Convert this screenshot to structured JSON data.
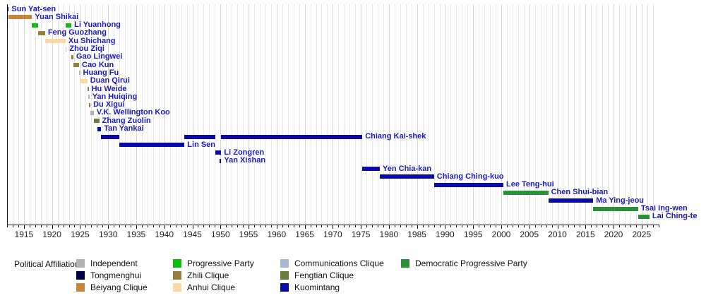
{
  "chart_data": {
    "type": "timeline-bar",
    "x_axis": {
      "domain": [
        1912,
        2028
      ],
      "tick_years": [
        1915,
        1920,
        1925,
        1930,
        1935,
        1940,
        1945,
        1950,
        1955,
        1960,
        1965,
        1970,
        1975,
        1980,
        1985,
        1990,
        1995,
        2000,
        2005,
        2010,
        2015,
        2020,
        2025
      ],
      "minor_tick_interval": 1,
      "grid": "on"
    },
    "leaders": [
      {
        "name": "Sun Yat-sen",
        "party": "Tongmenghui",
        "terms": [
          [
            1912.0,
            1912.3
          ]
        ]
      },
      {
        "name": "Yuan Shikai",
        "party": "Beiyang Clique",
        "terms": [
          [
            1912.2,
            1916.45
          ]
        ]
      },
      {
        "name": "Li Yuanhong",
        "party": "Progressive Party",
        "terms": [
          [
            1916.45,
            1917.55
          ],
          [
            1922.45,
            1923.45
          ]
        ]
      },
      {
        "name": "Feng Guozhang",
        "party": "Zhili Clique",
        "terms": [
          [
            1917.55,
            1918.78
          ]
        ]
      },
      {
        "name": "Xu Shichang",
        "party": "Anhui Clique",
        "terms": [
          [
            1918.78,
            1922.42
          ]
        ]
      },
      {
        "name": "Zhou Ziqi",
        "party": "Communications Clique",
        "terms": [
          [
            1922.42,
            1922.55
          ]
        ]
      },
      {
        "name": "Gao Lingwei",
        "party": "Zhili Clique",
        "terms": [
          [
            1923.45,
            1923.8
          ]
        ]
      },
      {
        "name": "Cao Kun",
        "party": "Zhili Clique",
        "terms": [
          [
            1923.8,
            1924.83
          ]
        ]
      },
      {
        "name": "Huang Fu",
        "party": "Independent",
        "terms": [
          [
            1924.83,
            1924.92
          ]
        ]
      },
      {
        "name": "Duan Qirui",
        "party": "Anhui Clique",
        "terms": [
          [
            1924.9,
            1926.3
          ]
        ]
      },
      {
        "name": "Hu Weide",
        "party": "Zhili Clique",
        "terms": [
          [
            1926.35,
            1926.48
          ]
        ]
      },
      {
        "name": "Yan Huiqing",
        "party": "Independent",
        "terms": [
          [
            1926.48,
            1926.58
          ]
        ]
      },
      {
        "name": "Du Xigui",
        "party": "Zhili Clique",
        "terms": [
          [
            1926.58,
            1926.85
          ]
        ]
      },
      {
        "name": "V.K. Wellington Koo",
        "party": "Independent",
        "terms": [
          [
            1926.85,
            1927.45
          ]
        ]
      },
      {
        "name": "Zhang Zuolin",
        "party": "Fengtian Clique",
        "terms": [
          [
            1927.45,
            1928.42
          ]
        ]
      },
      {
        "name": "Tan Yankai",
        "party": "Kuomintang",
        "terms": [
          [
            1928.1,
            1928.75
          ]
        ]
      },
      {
        "name": "Chiang Kai-shek",
        "party": "Kuomintang",
        "terms": [
          [
            1928.75,
            1931.95
          ],
          [
            1943.6,
            1949.05
          ],
          [
            1950.15,
            1975.27
          ]
        ]
      },
      {
        "name": "Lin Sen",
        "party": "Kuomintang",
        "terms": [
          [
            1931.95,
            1943.6
          ]
        ]
      },
      {
        "name": "Li Zongren",
        "party": "Kuomintang",
        "terms": [
          [
            1949.05,
            1950.15
          ]
        ]
      },
      {
        "name": "Yan Xishan",
        "party": "Kuomintang",
        "terms": [
          [
            1949.85,
            1950.15
          ]
        ]
      },
      {
        "name": "Yen Chia-kan",
        "party": "Kuomintang",
        "terms": [
          [
            1975.27,
            1978.38
          ]
        ]
      },
      {
        "name": "Chiang Ching-kuo",
        "party": "Kuomintang",
        "terms": [
          [
            1978.38,
            1988.04
          ]
        ]
      },
      {
        "name": "Lee Teng-hui",
        "party": "Kuomintang",
        "terms": [
          [
            1988.04,
            2000.38
          ]
        ]
      },
      {
        "name": "Chen Shui-bian",
        "party": "Democratic Progressive Party",
        "terms": [
          [
            2000.38,
            2008.38
          ]
        ]
      },
      {
        "name": "Ma Ying-jeou",
        "party": "Kuomintang",
        "terms": [
          [
            2008.38,
            2016.38
          ]
        ]
      },
      {
        "name": "Tsai Ing-wen",
        "party": "Democratic Progressive Party",
        "terms": [
          [
            2016.38,
            2024.38
          ]
        ]
      },
      {
        "name": "Lai Ching-te",
        "party": "Democratic Progressive Party",
        "terms": [
          [
            2024.38,
            2026.4
          ]
        ]
      }
    ],
    "party_colors": {
      "Independent": "#b3b3b3",
      "Tongmenghui": "#000045",
      "Beiyang Clique": "#c8863b",
      "Progressive Party": "#0cbe0c",
      "Zhili Clique": "#96803b",
      "Anhui Clique": "#fad7a3",
      "Communications Clique": "#a6b7d4",
      "Fengtian Clique": "#697c3d",
      "Kuomintang": "#0a0aaa",
      "Democratic Progressive Party": "#2a9138"
    }
  },
  "legend": {
    "title": "Political Affiliation:",
    "columns": [
      [
        "Independent",
        "Tongmenghui",
        "Beiyang Clique"
      ],
      [
        "Progressive Party",
        "Zhili Clique",
        "Anhui Clique"
      ],
      [
        "Communications Clique",
        "Fengtian Clique",
        "Kuomintang"
      ],
      [
        "Democratic Progressive Party"
      ]
    ]
  }
}
